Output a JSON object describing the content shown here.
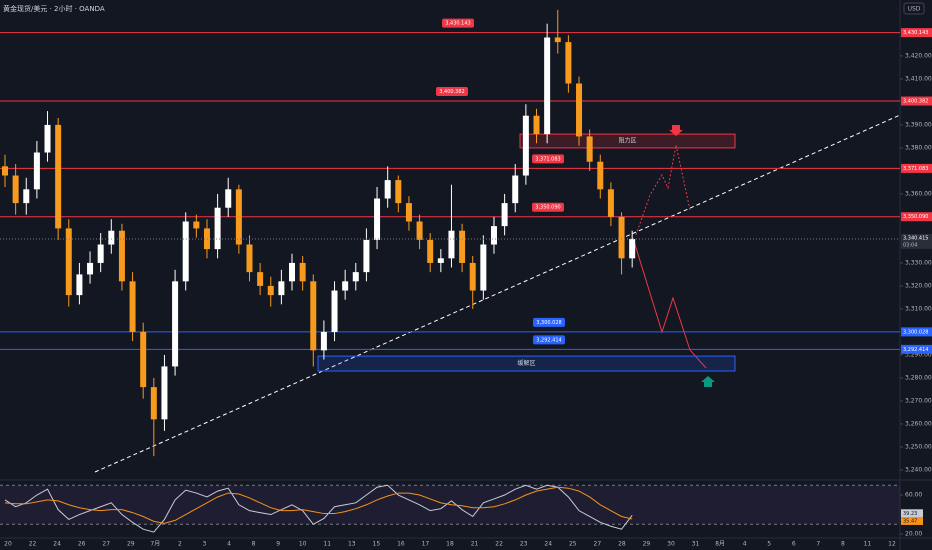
{
  "chart_data": [
    {
      "type": "candlestick",
      "title": "黄金现货/美元 · 2小时 · OANDA",
      "currency": "USD",
      "up_color": "#ffffff",
      "down_color": "#f79a1e",
      "open": [
        3372,
        3368,
        3356,
        3362,
        3378,
        3390,
        3345,
        3316,
        3325,
        3330,
        3338,
        3344,
        3322,
        3300,
        3276,
        3262,
        3285,
        3322,
        3348,
        3345,
        3336,
        3354,
        3362,
        3338,
        3326,
        3320,
        3316,
        3322,
        3330,
        3322,
        3292,
        3300,
        3318,
        3322,
        3326,
        3340,
        3358,
        3366,
        3356,
        3348,
        3340,
        3330,
        3332,
        3344,
        3330,
        3318,
        3338,
        3346,
        3356,
        3368,
        3394,
        3386,
        3428,
        3426,
        3408,
        3385,
        3374,
        3362,
        3350,
        3332
      ],
      "high": [
        3377,
        3373,
        3367,
        3383,
        3396,
        3393,
        3349,
        3330,
        3335,
        3343,
        3349,
        3347,
        3326,
        3304,
        3280,
        3290,
        3327,
        3352,
        3351,
        3349,
        3360,
        3367,
        3364,
        3342,
        3330,
        3324,
        3327,
        3334,
        3333,
        3325,
        3305,
        3322,
        3327,
        3330,
        3345,
        3363,
        3372,
        3368,
        3359,
        3351,
        3343,
        3336,
        3364,
        3347,
        3333,
        3342,
        3350,
        3360,
        3373,
        3399,
        3397,
        3434,
        3440,
        3429,
        3411,
        3388,
        3377,
        3365,
        3352,
        3344
      ],
      "low": [
        3363,
        3351,
        3351,
        3358,
        3374,
        3340,
        3311,
        3312,
        3321,
        3326,
        3334,
        3318,
        3296,
        3271,
        3246,
        3257,
        3281,
        3318,
        3341,
        3332,
        3332,
        3350,
        3334,
        3322,
        3316,
        3311,
        3312,
        3318,
        3318,
        3285,
        3288,
        3296,
        3314,
        3318,
        3322,
        3336,
        3354,
        3352,
        3344,
        3336,
        3326,
        3326,
        3328,
        3326,
        3310,
        3314,
        3334,
        3342,
        3352,
        3364,
        3382,
        3382,
        3421,
        3404,
        3381,
        3370,
        3358,
        3346,
        3325,
        3328
      ],
      "close": [
        3368,
        3356,
        3362,
        3378,
        3390,
        3345,
        3316,
        3325,
        3330,
        3338,
        3344,
        3322,
        3300,
        3276,
        3262,
        3285,
        3322,
        3348,
        3345,
        3336,
        3354,
        3362,
        3338,
        3326,
        3320,
        3316,
        3322,
        3330,
        3322,
        3292,
        3300,
        3318,
        3322,
        3326,
        3340,
        3358,
        3366,
        3356,
        3348,
        3340,
        3330,
        3332,
        3344,
        3330,
        3318,
        3338,
        3346,
        3356,
        3368,
        3394,
        3386,
        3428,
        3426,
        3408,
        3385,
        3374,
        3362,
        3350,
        3332,
        3340.415
      ],
      "ylim": [
        3236.5,
        3444.3
      ],
      "yticks": [
        {
          "value": 3250,
          "label": "3,250.000"
        },
        {
          "value": 3260,
          "label": "3,260.000"
        },
        {
          "value": 3270,
          "label": "3,270.000"
        },
        {
          "value": 3280,
          "label": "3,280.000"
        },
        {
          "value": 3290,
          "label": "3,290.000"
        },
        {
          "value": 3310,
          "label": "3,310.000"
        },
        {
          "value": 3320,
          "label": "3,320.000"
        },
        {
          "value": 3330,
          "label": "3,330.000"
        },
        {
          "value": 3360,
          "label": "3,360.000"
        },
        {
          "value": 3380,
          "label": "3,380.000"
        },
        {
          "value": 3390,
          "label": "3,390.000"
        },
        {
          "value": 3410,
          "label": "3,410.000"
        },
        {
          "value": 3420,
          "label": "3,420.000"
        },
        {
          "value": 3240,
          "label": "3,240.000"
        }
      ],
      "levels": [
        {
          "value": 3430.143,
          "label": "3,430.143",
          "color": "#f23645"
        },
        {
          "value": 3400.382,
          "label": "3,400.382",
          "color": "#f23645"
        },
        {
          "value": 3371.083,
          "label": "3,371.083",
          "color": "#f23645"
        },
        {
          "value": 3350.09,
          "label": "3,350.090",
          "color": "#f23645"
        },
        {
          "value": 3300.028,
          "label": "3,300.028",
          "color": "#2962ff"
        },
        {
          "value": 3292.414,
          "label": "3,292.414",
          "color": "#2962ff"
        }
      ],
      "zones": [
        {
          "label": "阻力区",
          "low": 3380,
          "high": 3386,
          "color": "#f23645"
        },
        {
          "label": "缓解区",
          "low": 3283,
          "high": 3289.5,
          "color": "#2962ff"
        }
      ],
      "last_price": {
        "value": 3340.415,
        "label": "3,340.415",
        "countdown": "03:04"
      },
      "x_axis_labels": [
        "20",
        "22",
        "24",
        "26",
        "27",
        "29",
        "7月",
        "2",
        "3",
        "4",
        "8",
        "9",
        "10",
        "11",
        "13",
        "15",
        "16",
        "17",
        "18",
        "21",
        "22",
        "23",
        "24",
        "25",
        "27",
        "28",
        "29",
        "30",
        "31",
        "8月",
        "4",
        "5",
        "6",
        "7",
        "8",
        "11",
        "12"
      ]
    },
    {
      "type": "line",
      "ylim": [
        18,
        71.3
      ],
      "yticks": [
        {
          "value": 60,
          "label": "60.00"
        },
        {
          "value": 20,
          "label": "20.00"
        }
      ],
      "band": [
        30,
        70
      ],
      "series": [
        {
          "color": "#c8ccd8",
          "values": [
            55,
            48,
            52,
            60,
            66,
            45,
            35,
            40,
            44,
            48,
            52,
            40,
            32,
            25,
            22,
            35,
            55,
            65,
            62,
            58,
            64,
            67,
            50,
            44,
            42,
            40,
            45,
            50,
            44,
            30,
            36,
            48,
            50,
            52,
            60,
            68,
            70,
            60,
            55,
            50,
            44,
            46,
            54,
            45,
            38,
            52,
            56,
            60,
            66,
            70,
            66,
            70,
            68,
            58,
            44,
            38,
            32,
            28,
            25,
            39.23
          ]
        },
        {
          "color": "#f7931a",
          "values": [
            52,
            51,
            51,
            53,
            55,
            54,
            50,
            47,
            45,
            44,
            45,
            45,
            42,
            38,
            33,
            31,
            34,
            40,
            46,
            52,
            58,
            62,
            61,
            57,
            52,
            47,
            44,
            44,
            45,
            43,
            41,
            41,
            43,
            46,
            50,
            55,
            59,
            62,
            62,
            60,
            56,
            52,
            50,
            49,
            47,
            47,
            48,
            51,
            55,
            60,
            64,
            66,
            68,
            67,
            64,
            58,
            50,
            44,
            38,
            35.47
          ]
        }
      ]
    }
  ]
}
